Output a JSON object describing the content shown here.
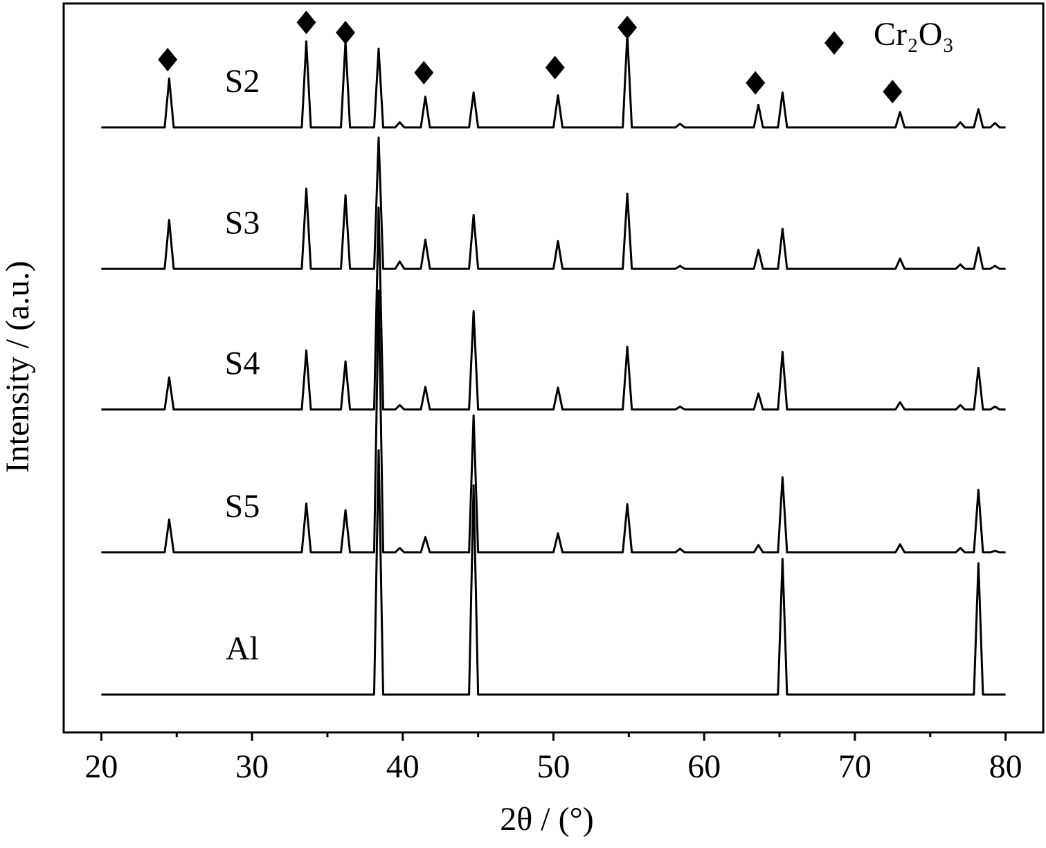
{
  "chart_data": {
    "type": "line",
    "xlabel": "2θ / (°)",
    "ylabel": "Intensity / (a.u.)",
    "xlim": [
      17.5,
      82.5
    ],
    "ylim": [
      0,
      100
    ],
    "xticks": [
      20,
      30,
      40,
      50,
      60,
      70,
      80
    ],
    "xminorticks": [
      25,
      35,
      45,
      55,
      65,
      75
    ],
    "x": [
      20,
      24.2,
      24.5,
      24.8,
      33.3,
      33.6,
      33.9,
      35.9,
      36.2,
      36.5,
      38.1,
      38.4,
      38.7,
      39.5,
      39.8,
      40.1,
      41.2,
      41.5,
      41.8,
      44.4,
      44.7,
      45.0,
      50.0,
      50.3,
      50.6,
      54.6,
      54.9,
      55.2,
      58.1,
      58.4,
      58.7,
      63.3,
      63.6,
      63.9,
      64.9,
      65.2,
      65.5,
      72.7,
      73.0,
      73.3,
      76.7,
      77.0,
      77.3,
      77.9,
      78.2,
      78.5,
      79.0,
      79.3,
      79.6,
      80
    ],
    "series": [
      {
        "name": "S2",
        "color": "#000000",
        "values": [
          83.0,
          83.0,
          89.7,
          83.0,
          83.0,
          94.8,
          83.0,
          83.0,
          94.8,
          83.0,
          83.0,
          93.8,
          83.0,
          83.0,
          83.7,
          83.0,
          83.0,
          87.2,
          83.0,
          83.0,
          87.8,
          83.0,
          83.0,
          87.4,
          83.0,
          83.0,
          95.8,
          83.0,
          83.0,
          83.5,
          83.0,
          83.0,
          86.1,
          83.0,
          83.0,
          87.8,
          83.0,
          83.0,
          85.1,
          83.0,
          83.0,
          83.7,
          83.0,
          83.0,
          85.5,
          83.0,
          83.0,
          83.6,
          83.0,
          83.0
        ]
      },
      {
        "name": "S3",
        "color": "#000000",
        "values": [
          63.6,
          63.6,
          70.3,
          63.6,
          63.6,
          74.6,
          63.6,
          63.6,
          73.7,
          63.6,
          63.6,
          81.6,
          63.6,
          63.6,
          64.6,
          63.6,
          63.6,
          67.6,
          63.6,
          63.6,
          71.0,
          63.6,
          63.6,
          67.4,
          63.6,
          63.6,
          73.9,
          63.6,
          63.6,
          64.0,
          63.6,
          63.6,
          66.2,
          63.6,
          63.6,
          69.1,
          63.6,
          63.6,
          65.0,
          63.6,
          63.6,
          64.2,
          63.6,
          63.6,
          66.5,
          63.6,
          63.6,
          64.0,
          63.6,
          63.6
        ]
      },
      {
        "name": "S4",
        "color": "#000000",
        "values": [
          44.3,
          44.3,
          48.7,
          44.3,
          44.3,
          52.4,
          44.3,
          44.3,
          50.9,
          44.3,
          44.3,
          72.0,
          44.3,
          44.3,
          44.9,
          44.3,
          44.3,
          47.4,
          44.3,
          44.3,
          57.8,
          44.3,
          44.3,
          47.3,
          44.3,
          44.3,
          52.9,
          44.3,
          44.3,
          44.7,
          44.3,
          44.3,
          46.5,
          44.3,
          44.3,
          52.2,
          44.3,
          44.3,
          45.3,
          44.3,
          44.3,
          44.9,
          44.3,
          44.3,
          50.0,
          44.3,
          44.3,
          44.7,
          44.3,
          44.3
        ]
      },
      {
        "name": "S5",
        "color": "#000000",
        "values": [
          24.7,
          24.7,
          29.2,
          24.7,
          24.7,
          31.4,
          24.7,
          24.7,
          30.5,
          24.7,
          24.7,
          60.6,
          24.7,
          24.7,
          25.3,
          24.7,
          24.7,
          26.8,
          24.7,
          24.7,
          43.5,
          24.7,
          24.7,
          27.3,
          24.7,
          24.7,
          31.3,
          24.7,
          24.7,
          25.2,
          24.7,
          24.7,
          25.7,
          24.7,
          24.7,
          35.0,
          24.7,
          24.7,
          25.8,
          24.7,
          24.7,
          25.3,
          24.7,
          24.7,
          33.3,
          24.7,
          24.7,
          24.9,
          24.7,
          24.7
        ]
      },
      {
        "name": "Al",
        "color": "#000000",
        "values": [
          5.2,
          5.2,
          5.2,
          5.2,
          5.2,
          5.2,
          5.2,
          5.2,
          5.2,
          5.2,
          5.2,
          38.7,
          5.2,
          5.2,
          5.2,
          5.2,
          5.2,
          5.2,
          5.2,
          5.2,
          33.9,
          5.2,
          5.2,
          5.2,
          5.2,
          5.2,
          5.2,
          5.2,
          5.2,
          5.2,
          5.2,
          5.2,
          5.2,
          5.2,
          5.2,
          23.8,
          5.2,
          5.2,
          5.2,
          5.2,
          5.2,
          5.2,
          5.2,
          5.2,
          23.2,
          5.2,
          5.2,
          5.2,
          5.2,
          5.2
        ]
      }
    ],
    "markers": {
      "symbol": "diamond",
      "color": "#000000",
      "label": "Cr₂O₃",
      "legend": "top-right",
      "x": [
        24.4,
        33.6,
        36.2,
        41.4,
        50.1,
        54.9,
        63.4,
        72.5
      ],
      "y": [
        92.3,
        97.4,
        96.0,
        90.5,
        91.2,
        96.7,
        89.1,
        87.9
      ]
    }
  }
}
